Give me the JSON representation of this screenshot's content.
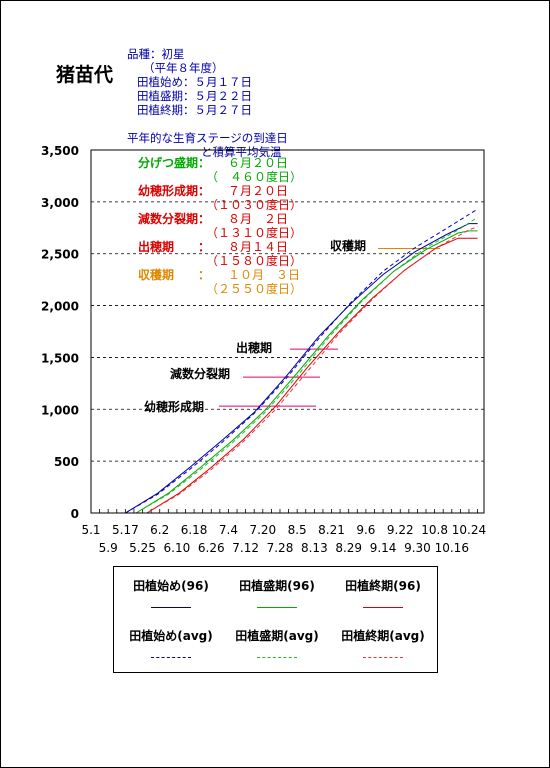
{
  "page": {
    "title": "猪苗代",
    "variety": "品種：初星",
    "year": "（平年８年度）",
    "plant_start": "田植始め：５月１７日",
    "plant_peak": "田植盛期：５月２２日",
    "plant_end": "田植終期：５月２７日",
    "subtitle1": "平年的な生育ステージの到達日",
    "subtitle2": "と積算平均気温"
  },
  "stages": [
    {
      "label": "分げつ盛期：",
      "date": "６月２０日",
      "temp": "（　４６０度日）",
      "color": "#00aa00"
    },
    {
      "label": "幼穂形成期：",
      "date": "７月２０日",
      "temp": "（１０３０度日）",
      "color": "#dd0000"
    },
    {
      "label": "減数分裂期：",
      "date": "８月　２日",
      "temp": "（１３１０度日）",
      "color": "#dd0000"
    },
    {
      "label": "出穂期　　：",
      "date": "８月１４日",
      "temp": "（１５８０度日）",
      "color": "#dd0000"
    },
    {
      "label": "収穫期　　：",
      "date": "１０月　３日",
      "temp": "（２５５０度日）",
      "color": "#dd8800"
    }
  ],
  "chart_data": {
    "type": "line",
    "y_ticks": [
      "0",
      "500",
      "1,000",
      "1,500",
      "2,000",
      "2,500",
      "3,000",
      "3,500"
    ],
    "ylim": [
      0,
      3500
    ],
    "x_ticks_top": [
      "5.1",
      "5.17",
      "6.2",
      "6.18",
      "7.4",
      "7.20",
      "8.5",
      "8.21",
      "9.6",
      "9.22",
      "10.8",
      "10.24"
    ],
    "x_ticks_bottom": [
      "5.9",
      "5.25",
      "6.10",
      "6.26",
      "7.12",
      "7.28",
      "8.13",
      "8.29",
      "9.14",
      "9.30",
      "10.16"
    ],
    "xlim": [
      "5.1",
      "10.31"
    ],
    "grid": "horizontal dashed",
    "annotations": [
      {
        "label": "収穫期",
        "date": "10.3",
        "y": 2550,
        "color": "#dd8800"
      },
      {
        "label": "出穂期",
        "date": "8.14",
        "y": 1580,
        "color": "#dd0077"
      },
      {
        "label": "減数分裂期",
        "date": "8.2",
        "y": 1310,
        "color": "#dd0077"
      },
      {
        "label": "幼穂形成期",
        "date": "7.20",
        "y": 1030,
        "color": "#dd0077"
      }
    ],
    "series": [
      {
        "name": "田植始め(96)",
        "color": "#000099",
        "dash": false,
        "points": [
          [
            "5.17",
            0
          ],
          [
            "6.1",
            190
          ],
          [
            "6.16",
            440
          ],
          [
            "7.1",
            700
          ],
          [
            "7.16",
            970
          ],
          [
            "7.31",
            1320
          ],
          [
            "8.15",
            1700
          ],
          [
            "8.30",
            2020
          ],
          [
            "9.14",
            2300
          ],
          [
            "9.29",
            2520
          ],
          [
            "10.14",
            2690
          ],
          [
            "10.24",
            2790
          ],
          [
            "10.28",
            2790
          ]
        ]
      },
      {
        "name": "田植盛期(96)",
        "color": "#00aa00",
        "dash": false,
        "points": [
          [
            "5.22",
            0
          ],
          [
            "6.6",
            190
          ],
          [
            "6.21",
            440
          ],
          [
            "7.6",
            700
          ],
          [
            "7.21",
            990
          ],
          [
            "8.5",
            1350
          ],
          [
            "8.20",
            1720
          ],
          [
            "9.4",
            2050
          ],
          [
            "9.19",
            2330
          ],
          [
            "10.4",
            2540
          ],
          [
            "10.19",
            2700
          ],
          [
            "10.24",
            2720
          ],
          [
            "10.28",
            2720
          ]
        ]
      },
      {
        "name": "田植終期(96)",
        "color": "#dd0000",
        "dash": false,
        "points": [
          [
            "5.27",
            0
          ],
          [
            "6.11",
            190
          ],
          [
            "6.26",
            440
          ],
          [
            "7.11",
            710
          ],
          [
            "7.26",
            1030
          ],
          [
            "8.10",
            1410
          ],
          [
            "8.25",
            1760
          ],
          [
            "9.9",
            2070
          ],
          [
            "9.24",
            2340
          ],
          [
            "10.9",
            2560
          ],
          [
            "10.19",
            2650
          ],
          [
            "10.28",
            2650
          ]
        ]
      },
      {
        "name": "田植始め(avg)",
        "color": "#0000cc",
        "dash": true,
        "points": [
          [
            "5.17",
            0
          ],
          [
            "6.1",
            180
          ],
          [
            "6.16",
            420
          ],
          [
            "7.1",
            680
          ],
          [
            "7.16",
            960
          ],
          [
            "7.31",
            1300
          ],
          [
            "8.15",
            1680
          ],
          [
            "8.30",
            2030
          ],
          [
            "9.14",
            2330
          ],
          [
            "9.29",
            2560
          ],
          [
            "10.14",
            2750
          ],
          [
            "10.28",
            2930
          ]
        ]
      },
      {
        "name": "田植盛期(avg)",
        "color": "#22bb22",
        "dash": true,
        "points": [
          [
            "5.22",
            0
          ],
          [
            "6.6",
            180
          ],
          [
            "6.21",
            420
          ],
          [
            "7.6",
            680
          ],
          [
            "7.21",
            970
          ],
          [
            "8.5",
            1320
          ],
          [
            "8.20",
            1700
          ],
          [
            "9.4",
            2040
          ],
          [
            "9.19",
            2330
          ],
          [
            "10.4",
            2560
          ],
          [
            "10.19",
            2730
          ],
          [
            "10.28",
            2850
          ]
        ]
      },
      {
        "name": "田植終期(avg)",
        "color": "#ee3333",
        "dash": true,
        "points": [
          [
            "5.27",
            0
          ],
          [
            "6.11",
            180
          ],
          [
            "6.26",
            420
          ],
          [
            "7.11",
            690
          ],
          [
            "7.26",
            1000
          ],
          [
            "8.10",
            1370
          ],
          [
            "8.25",
            1740
          ],
          [
            "9.9",
            2060
          ],
          [
            "9.24",
            2340
          ],
          [
            "10.9",
            2560
          ],
          [
            "10.24",
            2730
          ],
          [
            "10.28",
            2760
          ]
        ]
      }
    ]
  }
}
